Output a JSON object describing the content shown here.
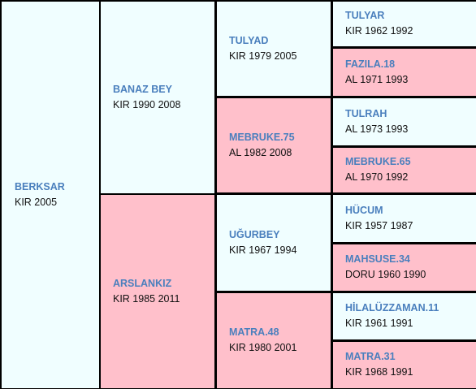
{
  "colors": {
    "male_bg": "#f0feff",
    "female_bg": "#ffc0cb",
    "name_color": "#4a7fbd",
    "info_color": "#111111",
    "grid_color": "#000000"
  },
  "horse": {
    "name": "BERKSAR",
    "info": "KIR 2005"
  },
  "sire": {
    "name": "BANAZ BEY",
    "info": "KIR 1990 2008"
  },
  "dam": {
    "name": "ARSLANKIZ",
    "info": "KIR 1985 2011"
  },
  "sire_sire": {
    "name": "TULYAD",
    "info": "KIR 1979 2005"
  },
  "sire_dam": {
    "name": "MEBRUKE.75",
    "info": "AL 1982 2008"
  },
  "dam_sire": {
    "name": "UĞURBEY",
    "info": "KIR 1967 1994"
  },
  "dam_dam": {
    "name": "MATRA.48",
    "info": "KIR 1980 2001"
  },
  "ss_sire": {
    "name": "TULYAR",
    "info": "KIR 1962 1992"
  },
  "ss_dam": {
    "name": "FAZILA.18",
    "info": "AL 1971 1993"
  },
  "sd_sire": {
    "name": "TULRAH",
    "info": "AL 1973 1993"
  },
  "sd_dam": {
    "name": "MEBRUKE.65",
    "info": "AL 1970 1992"
  },
  "ds_sire": {
    "name": "HÜCUM",
    "info": "KIR 1957 1987"
  },
  "ds_dam": {
    "name": "MAHSUSE.34",
    "info": "DORU 1960 1990"
  },
  "dd_sire": {
    "name": "HİLALÜZZAMAN.11",
    "info": "KIR 1961 1991"
  },
  "dd_dam": {
    "name": "MATRA.31",
    "info": "KIR 1968 1991"
  }
}
